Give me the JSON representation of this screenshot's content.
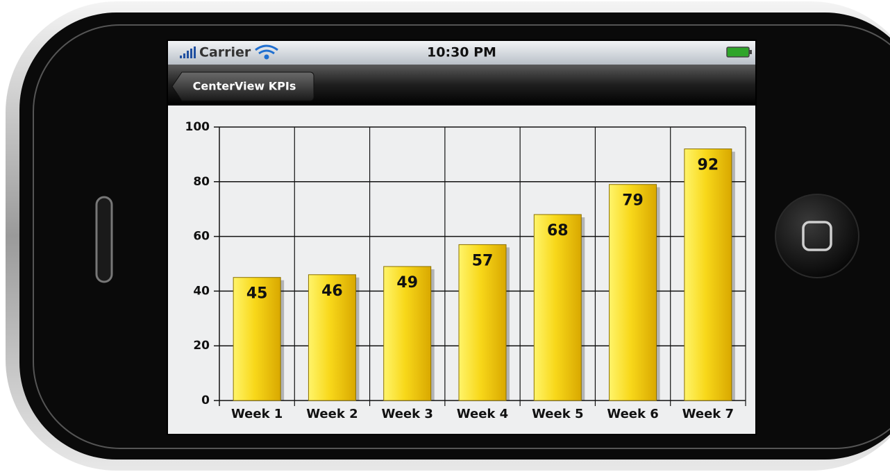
{
  "status_bar": {
    "carrier": "Carrier",
    "time": "10:30 PM"
  },
  "nav_bar": {
    "back_button": "CenterView KPIs"
  },
  "chart_data": {
    "type": "bar",
    "categories": [
      "Week 1",
      "Week 2",
      "Week 3",
      "Week 4",
      "Week 5",
      "Week 6",
      "Week 7"
    ],
    "values": [
      45,
      46,
      49,
      57,
      68,
      79,
      92
    ],
    "color": "#f8d81a",
    "ylim": [
      0,
      100
    ],
    "yticks": [
      0,
      20,
      40,
      60,
      80,
      100
    ],
    "grid": true
  }
}
